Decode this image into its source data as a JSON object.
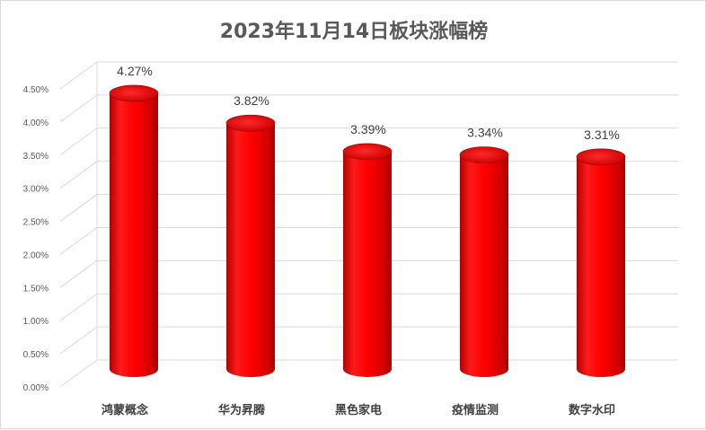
{
  "chart_data": {
    "type": "bar",
    "title": "2023年11月14日板块涨幅榜",
    "categories": [
      "鸿蒙概念",
      "华为昇腾",
      "黑色家电",
      "疫情监测",
      "数字水印"
    ],
    "values": [
      4.27,
      3.82,
      3.39,
      3.34,
      3.31
    ],
    "value_labels": [
      "4.27%",
      "3.82%",
      "3.39%",
      "3.34%",
      "3.31%"
    ],
    "yticks": [
      "0.00%",
      "0.50%",
      "1.00%",
      "1.50%",
      "2.00%",
      "2.50%",
      "3.00%",
      "3.50%",
      "4.00%",
      "4.50%"
    ],
    "ylim": [
      0,
      4.5
    ],
    "bar_style": "3d-cylinder",
    "bar_color": "#ff0000",
    "grid": true,
    "legend": "none"
  }
}
